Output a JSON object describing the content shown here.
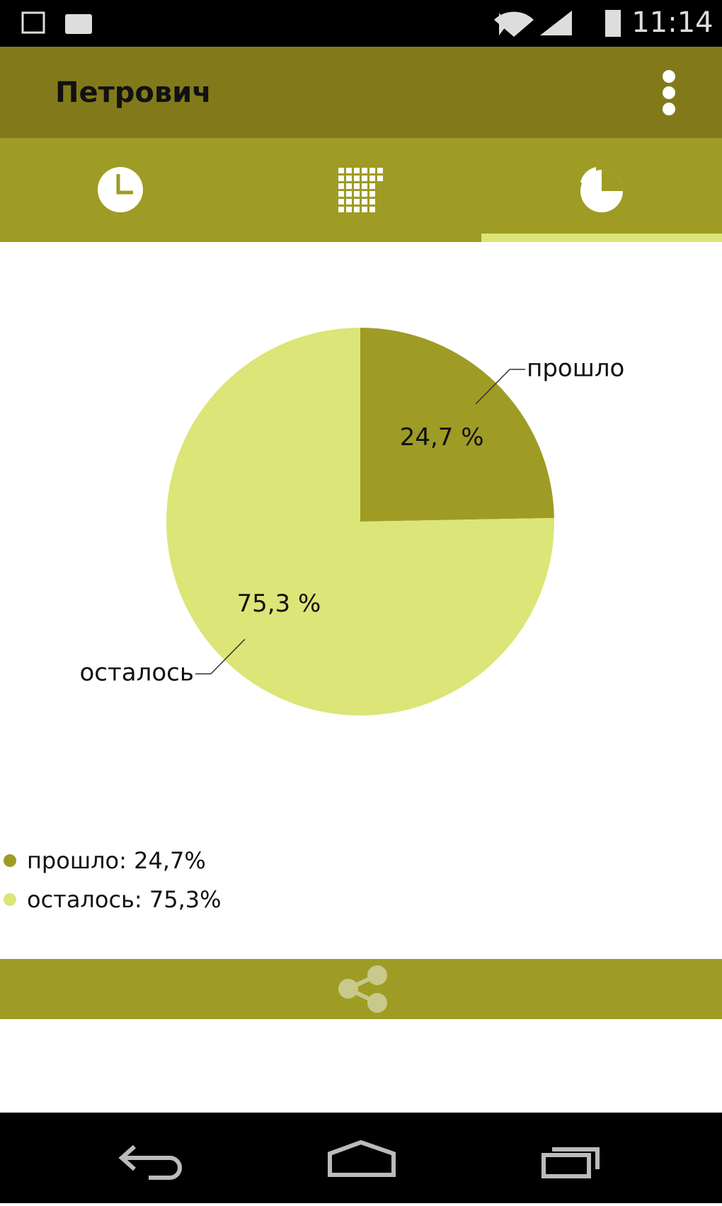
{
  "status_bar": {
    "time": "11:14"
  },
  "app_bar": {
    "title": "Петрович"
  },
  "chart_data": {
    "type": "pie",
    "categories": [
      "прошло",
      "осталось"
    ],
    "values": [
      24.7,
      75.3
    ],
    "value_labels": [
      "24,7 %",
      "75,3 %"
    ],
    "colors": [
      "#9e9c24",
      "#dce577"
    ],
    "legend_labels": [
      "прошло: 24,7%",
      "осталось: 75,3%"
    ]
  }
}
